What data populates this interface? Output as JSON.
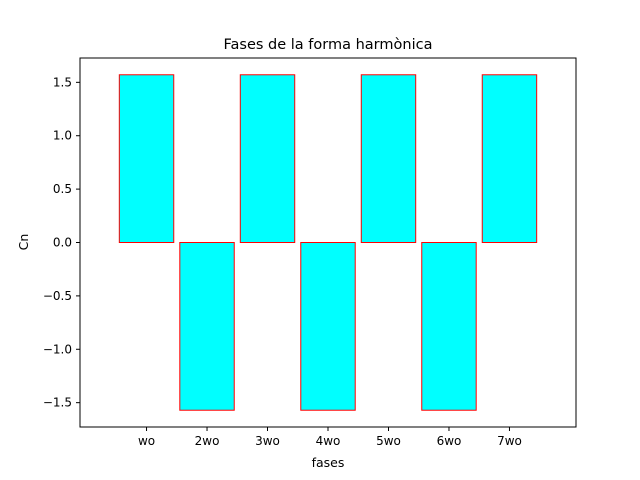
{
  "chart_data": {
    "type": "bar",
    "title": "Fases de la forma harmònica",
    "xlabel": "fases",
    "ylabel": "Cn",
    "categories": [
      "wo",
      "2wo",
      "3wo",
      "4wo",
      "5wo",
      "6wo",
      "7wo"
    ],
    "values": [
      1.5708,
      -1.5708,
      1.5708,
      -1.5708,
      1.5708,
      -1.5708,
      1.5708
    ],
    "ylim": [
      -1.7279,
      1.7279
    ],
    "yticks": [
      -1.5,
      -1.0,
      -0.5,
      0.0,
      0.5,
      1.0,
      1.5
    ],
    "ytick_labels": [
      "−1.5",
      "−1.0",
      "−0.5",
      "0.0",
      "0.5",
      "1.0",
      "1.5"
    ],
    "grid": false,
    "bar_fill": "#00ffff",
    "bar_edge": "#ff0000"
  }
}
